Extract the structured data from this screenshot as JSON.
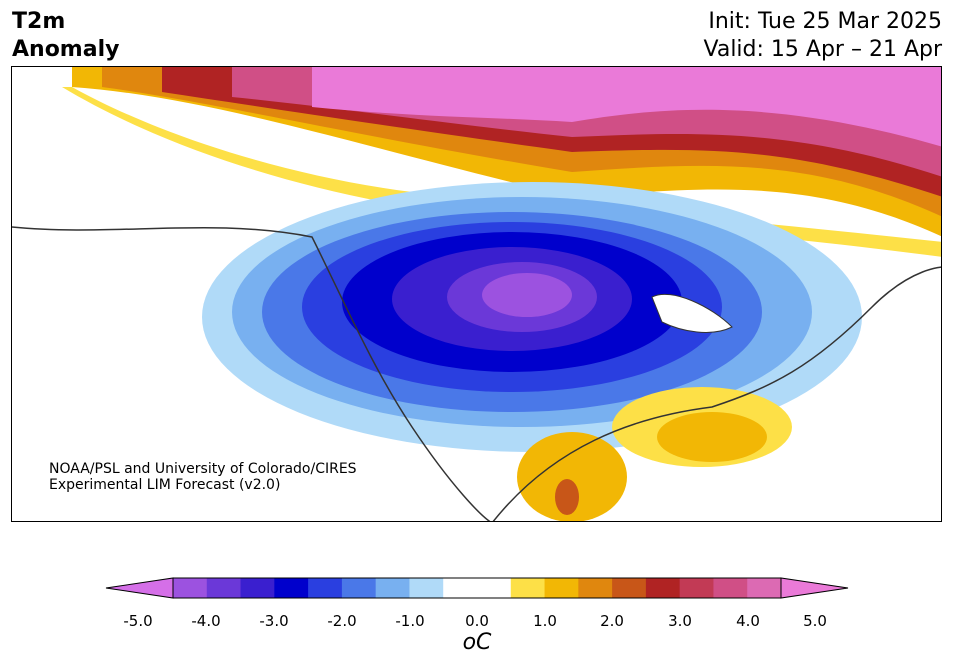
{
  "header": {
    "var_line1": "T2m",
    "var_line2": "Anomaly",
    "init_line": "Init: Tue 25 Mar 2025",
    "valid_line": "Valid: 15 Apr – 21 Apr"
  },
  "credit": {
    "line1": "NOAA/PSL and University of Colorado/CIRES",
    "line2": "Experimental LIM Forecast (v2.0)"
  },
  "colorbar": {
    "ticks": [
      "-5.0",
      "-4.0",
      "-3.0",
      "-2.0",
      "-1.0",
      "0.0",
      "1.0",
      "2.0",
      "3.0",
      "4.0",
      "5.0"
    ],
    "units_label": "oC",
    "levels": [
      -5.0,
      -4.5,
      -4.0,
      -3.5,
      -3.0,
      -2.5,
      -2.0,
      -1.5,
      -1.0,
      -0.5,
      0.5,
      1.0,
      1.5,
      2.0,
      2.5,
      3.0,
      3.5,
      4.0,
      4.5,
      5.0
    ],
    "colors": [
      "#d56fe8",
      "#9c52e0",
      "#6b38d8",
      "#3a1fcf",
      "#0000cc",
      "#2a3fe0",
      "#4a78e8",
      "#78b0f0",
      "#b0daf8",
      "#ffffff",
      "#ffffff",
      "#fde047",
      "#f2b705",
      "#e0870e",
      "#c85618",
      "#b02323",
      "#c23a55",
      "#d04f86",
      "#dc6ab3",
      "#ea7ad8"
    ]
  }
}
